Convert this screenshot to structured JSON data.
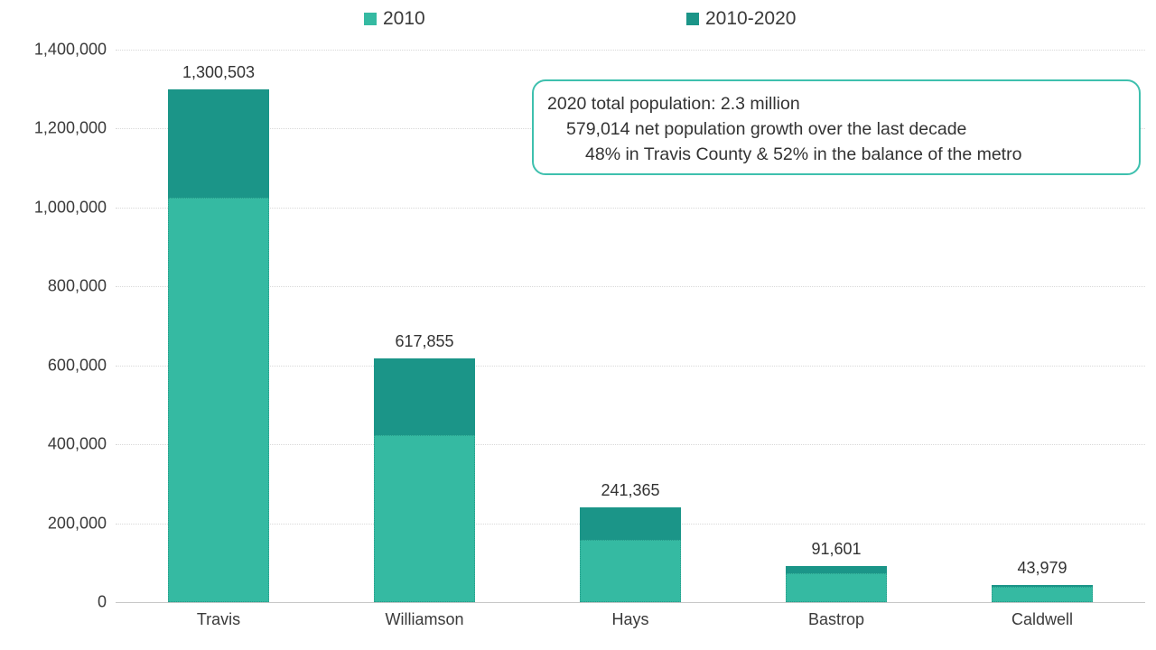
{
  "chart_data": {
    "type": "bar",
    "stacked": true,
    "title": "",
    "xlabel": "",
    "ylabel": "",
    "categories": [
      "Travis",
      "Williamson",
      "Hays",
      "Bastrop",
      "Caldwell"
    ],
    "series": [
      {
        "name": "2010",
        "color": "#35baa2",
        "values": [
          1024266,
          422679,
          157107,
          74171,
          38066
        ]
      },
      {
        "name": "2010-2020",
        "color": "#1b9588",
        "values": [
          276237,
          195176,
          84258,
          17430,
          5913
        ]
      }
    ],
    "totals": [
      1300503,
      617855,
      241365,
      91601,
      43979
    ],
    "total_labels": [
      "1,300,503",
      "617,855",
      "241,365",
      "91,601",
      "43,979"
    ],
    "ylim": [
      0,
      1400000
    ],
    "ytick_step": 200000,
    "ytick_labels": [
      "0",
      "200,000",
      "400,000",
      "600,000",
      "800,000",
      "1,000,000",
      "1,200,000",
      "1,400,000"
    ],
    "grid": true,
    "legend_position": "top"
  },
  "legend": {
    "items": [
      {
        "label": "2010",
        "color": "#35baa2"
      },
      {
        "label": "2010-2020",
        "color": "#1b9588"
      }
    ]
  },
  "annotation": {
    "border_color": "#3ec0ae",
    "lines": [
      "2020 total population: 2.3 million",
      "579,014 net population growth over the last decade",
      "48% in Travis County & 52% in the balance of the metro"
    ]
  }
}
